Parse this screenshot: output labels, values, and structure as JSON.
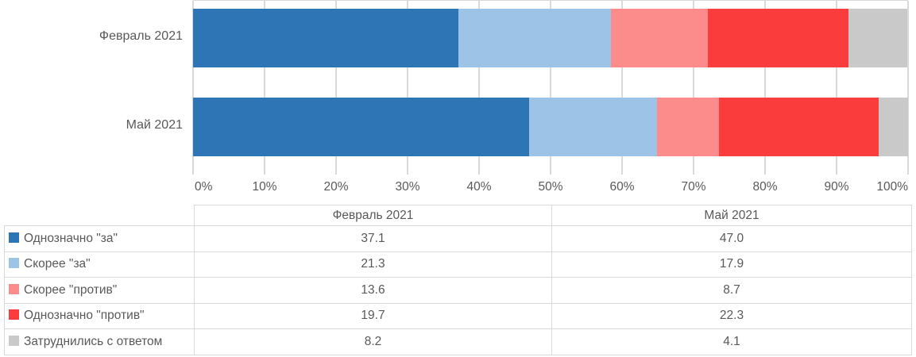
{
  "chart_data": {
    "type": "bar",
    "orientation": "horizontal-stacked",
    "title": "",
    "xlabel": "",
    "ylabel": "",
    "xlim": [
      0,
      100
    ],
    "grid": true,
    "x_ticks": [
      "0%",
      "10%",
      "20%",
      "30%",
      "40%",
      "50%",
      "60%",
      "70%",
      "80%",
      "90%",
      "100%"
    ],
    "categories": [
      "Февраль 2021",
      "Май 2021"
    ],
    "series": [
      {
        "name": "Однозначно \"за\"",
        "color": "#2E75B6",
        "values": [
          37.1,
          47.0
        ]
      },
      {
        "name": "Скорее \"за\"",
        "color": "#9DC3E6",
        "values": [
          21.3,
          17.9
        ]
      },
      {
        "name": "Скорее \"против\"",
        "color": "#FC8C8C",
        "values": [
          13.6,
          8.7
        ]
      },
      {
        "name": "Однозначно \"против\"",
        "color": "#FA3C3C",
        "values": [
          19.7,
          22.3
        ]
      },
      {
        "name": "Затруднились с ответом",
        "color": "#C9C9C9",
        "values": [
          8.2,
          4.1
        ]
      }
    ],
    "legend_position": "table-below"
  },
  "table": {
    "col_headers": [
      "Февраль 2021",
      "Май 2021"
    ],
    "rows": [
      {
        "swatch_color": "#2E75B6",
        "label": "Однозначно \"за\"",
        "values": [
          "37.1",
          "47.0"
        ]
      },
      {
        "swatch_color": "#9DC3E6",
        "label": "Скорее \"за\"",
        "values": [
          "21.3",
          "17.9"
        ]
      },
      {
        "swatch_color": "#FC8C8C",
        "label": "Скорее \"против\"",
        "values": [
          "13.6",
          "8.7"
        ]
      },
      {
        "swatch_color": "#FA3C3C",
        "label": "Однозначно \"против\"",
        "values": [
          "19.7",
          "22.3"
        ]
      },
      {
        "swatch_color": "#C9C9C9",
        "label": "Затруднились с ответом",
        "values": [
          "8.2",
          "4.1"
        ]
      }
    ]
  },
  "colors": {
    "gridline": "#D9D9D9",
    "table_border": "#D9D9D9",
    "text": "#595959"
  }
}
